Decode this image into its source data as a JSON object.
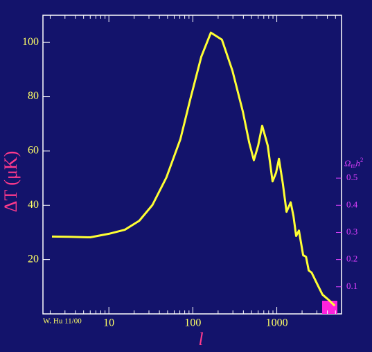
{
  "chart_data": {
    "type": "line",
    "ylabel": "ΔT (μK)",
    "xlabel": "l",
    "annotation": "W. Hu 11/00",
    "y2label": {
      "base": "Ω",
      "sub": "m",
      "main": "h",
      "sup": "2"
    },
    "xscale": "log",
    "xlim": [
      1.64,
      5900
    ],
    "ylim": [
      0,
      110
    ],
    "y2lim": [
      0,
      1.1
    ],
    "xticks": [
      10,
      100,
      1000
    ],
    "yticks": [
      20,
      40,
      60,
      80,
      100
    ],
    "y2ticks": [
      0.1,
      0.2,
      0.3,
      0.4,
      0.5
    ],
    "x": [
      2.1,
      3.4,
      6,
      10,
      15.5,
      23,
      33,
      48.5,
      71,
      94,
      126,
      164,
      222,
      296,
      395,
      470,
      533,
      600,
      670,
      780,
      890,
      980,
      1060,
      1180,
      1306,
      1463,
      1580,
      1700,
      1835,
      2060,
      2230,
      2400,
      2600,
      3040,
      3500,
      4200,
      4900
    ],
    "series": [
      {
        "name": "ΔT",
        "color": "#ffff33",
        "values": [
          28.5,
          28.4,
          28.2,
          29.5,
          31,
          34.3,
          40.1,
          50.3,
          64.3,
          79.5,
          94.7,
          103.6,
          101,
          89.6,
          74.4,
          63,
          56.6,
          62,
          69.3,
          62,
          48.8,
          52,
          57.1,
          48,
          37.6,
          41.1,
          36,
          28.7,
          30.7,
          21.6,
          21,
          16,
          15.2,
          10.9,
          7.1,
          5,
          3
        ]
      }
    ]
  }
}
